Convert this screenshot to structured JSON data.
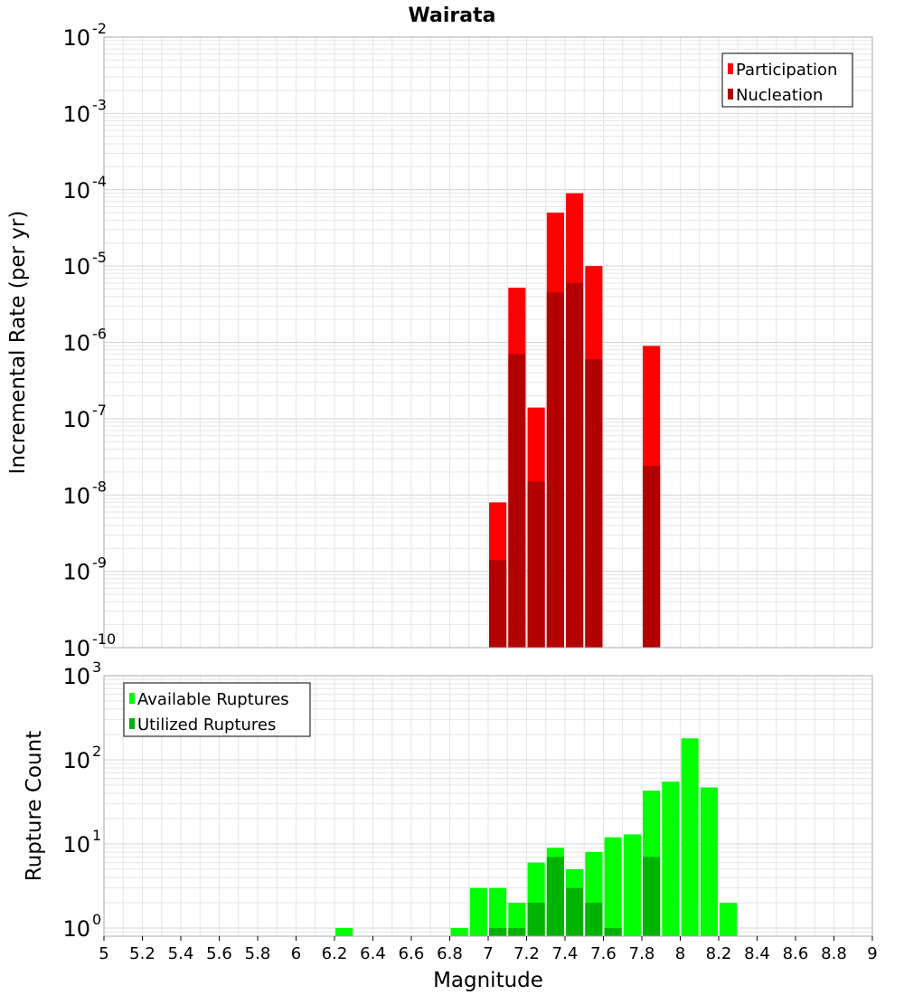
{
  "title": "Wairata",
  "colors": {
    "participation": "#ff0000",
    "nucleation": "#b30000",
    "available": "#00ff00",
    "utilized": "#00b300",
    "grid": "#e6e6e6",
    "frame": "#aaaaaa"
  },
  "chart_data": [
    {
      "type": "bar",
      "name": "incremental-rate",
      "title": "Wairata",
      "xlabel": "",
      "ylabel": "Incremental Rate (per yr)",
      "xlim": [
        5,
        9
      ],
      "ylim": [
        1e-10,
        0.01
      ],
      "yscale": "log",
      "grid": true,
      "legend_position": "top-right",
      "y_ticks": [
        {
          "base": "10",
          "exp": "-2",
          "value": 0.01
        },
        {
          "base": "10",
          "exp": "-3",
          "value": 0.001
        },
        {
          "base": "10",
          "exp": "-4",
          "value": 0.0001
        },
        {
          "base": "10",
          "exp": "-5",
          "value": 1e-05
        },
        {
          "base": "10",
          "exp": "-6",
          "value": 1e-06
        },
        {
          "base": "10",
          "exp": "-7",
          "value": 1e-07
        },
        {
          "base": "10",
          "exp": "-8",
          "value": 1e-08
        },
        {
          "base": "10",
          "exp": "-9",
          "value": 1e-09
        },
        {
          "base": "10",
          "exp": "-10",
          "value": 1e-10
        }
      ],
      "series": [
        {
          "name": "Participation",
          "color": "#ff0000",
          "x": [
            7.05,
            7.15,
            7.25,
            7.35,
            7.45,
            7.55,
            7.85
          ],
          "values": [
            8e-09,
            5.2e-06,
            1.4e-07,
            5e-05,
            9e-05,
            1e-05,
            9e-07
          ]
        },
        {
          "name": "Nucleation",
          "color": "#b30000",
          "x": [
            7.05,
            7.15,
            7.25,
            7.35,
            7.45,
            7.55,
            7.85
          ],
          "values": [
            1.4e-09,
            7e-07,
            1.5e-08,
            4.5e-06,
            6e-06,
            6e-07,
            2.4e-08
          ]
        }
      ]
    },
    {
      "type": "bar",
      "name": "rupture-count",
      "xlabel": "Magnitude",
      "ylabel": "Rupture Count",
      "xlim": [
        5,
        9
      ],
      "ylim": [
        0.8,
        1000
      ],
      "yscale": "log",
      "grid": true,
      "legend_position": "top-left",
      "x_ticks": [
        "5",
        "5.2",
        "5.4",
        "5.6",
        "5.8",
        "6",
        "6.2",
        "6.4",
        "6.6",
        "6.8",
        "7",
        "7.2",
        "7.4",
        "7.6",
        "7.8",
        "8",
        "8.2",
        "8.4",
        "8.6",
        "8.8",
        "9"
      ],
      "y_ticks": [
        {
          "base": "10",
          "exp": "3",
          "value": 1000
        },
        {
          "base": "10",
          "exp": "2",
          "value": 100
        },
        {
          "base": "10",
          "exp": "1",
          "value": 10
        },
        {
          "base": "10",
          "exp": "0",
          "value": 1
        }
      ],
      "series": [
        {
          "name": "Available Ruptures",
          "color": "#00ff00",
          "x": [
            6.25,
            6.85,
            6.95,
            7.05,
            7.15,
            7.25,
            7.35,
            7.45,
            7.55,
            7.65,
            7.75,
            7.85,
            7.95,
            8.05,
            8.15,
            8.25
          ],
          "values": [
            1,
            1,
            3,
            3,
            2,
            6,
            9,
            5,
            8,
            12,
            13,
            43,
            55,
            180,
            47,
            2
          ]
        },
        {
          "name": "Utilized Ruptures",
          "color": "#00b300",
          "x": [
            7.05,
            7.15,
            7.25,
            7.35,
            7.45,
            7.55,
            7.65,
            7.85
          ],
          "values": [
            1,
            1,
            2,
            7,
            3,
            2,
            1,
            7
          ]
        }
      ]
    }
  ]
}
